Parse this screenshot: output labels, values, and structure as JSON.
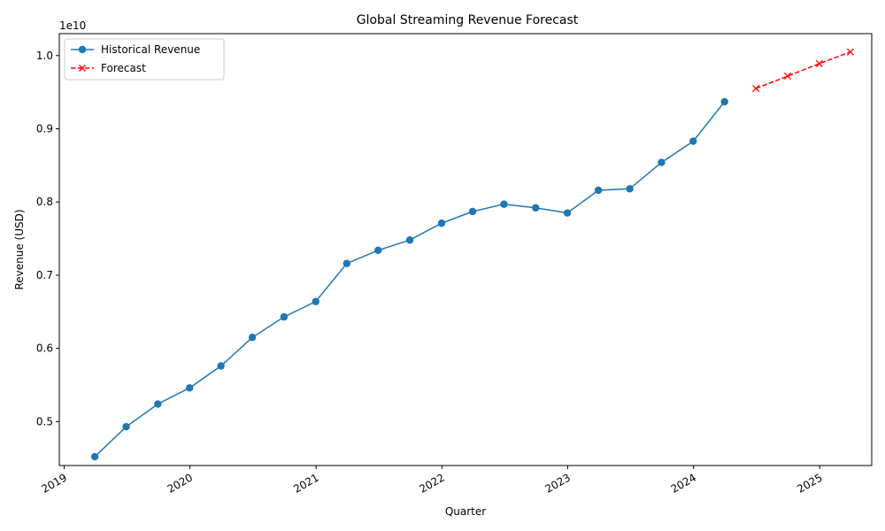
{
  "chart_data": {
    "type": "line",
    "title": "Global Streaming Revenue Forecast",
    "xlabel": "Quarter",
    "ylabel": "Revenue (USD)",
    "y_offset_label": "1e10",
    "x_tick_labels": [
      "2019",
      "2020",
      "2021",
      "2022",
      "2023",
      "2024",
      "2025"
    ],
    "y_ticks": [
      0.5,
      0.6,
      0.7,
      0.8,
      0.9,
      1.0
    ],
    "y_tick_labels": [
      "0.5",
      "0.6",
      "0.7",
      "0.8",
      "0.9",
      "1.0"
    ],
    "ylim": [
      0.44,
      1.03
    ],
    "xlim": [
      "2018-12-18",
      "2025-06-01"
    ],
    "legend_position": "upper-left",
    "grid": false,
    "series": [
      {
        "name": "Historical Revenue",
        "color": "#1f77b4",
        "marker": "circle",
        "line_style": "solid",
        "x": [
          "2019-03-31",
          "2019-06-30",
          "2019-09-30",
          "2019-12-31",
          "2020-03-31",
          "2020-06-30",
          "2020-09-30",
          "2020-12-31",
          "2021-03-31",
          "2021-06-30",
          "2021-09-30",
          "2021-12-31",
          "2022-03-31",
          "2022-06-30",
          "2022-09-30",
          "2022-12-31",
          "2023-03-31",
          "2023-06-30",
          "2023-09-30",
          "2023-12-31",
          "2024-03-31"
        ],
        "values": [
          0.452,
          0.493,
          0.524,
          0.546,
          0.576,
          0.615,
          0.643,
          0.664,
          0.716,
          0.734,
          0.748,
          0.771,
          0.787,
          0.797,
          0.792,
          0.785,
          0.816,
          0.818,
          0.854,
          0.883,
          0.937
        ]
      },
      {
        "name": "Forecast",
        "color": "#ff0000",
        "marker": "x",
        "line_style": "dashed",
        "x": [
          "2024-06-30",
          "2024-09-30",
          "2024-12-31",
          "2025-03-31"
        ],
        "values": [
          0.955,
          0.972,
          0.989,
          1.005
        ]
      }
    ]
  }
}
